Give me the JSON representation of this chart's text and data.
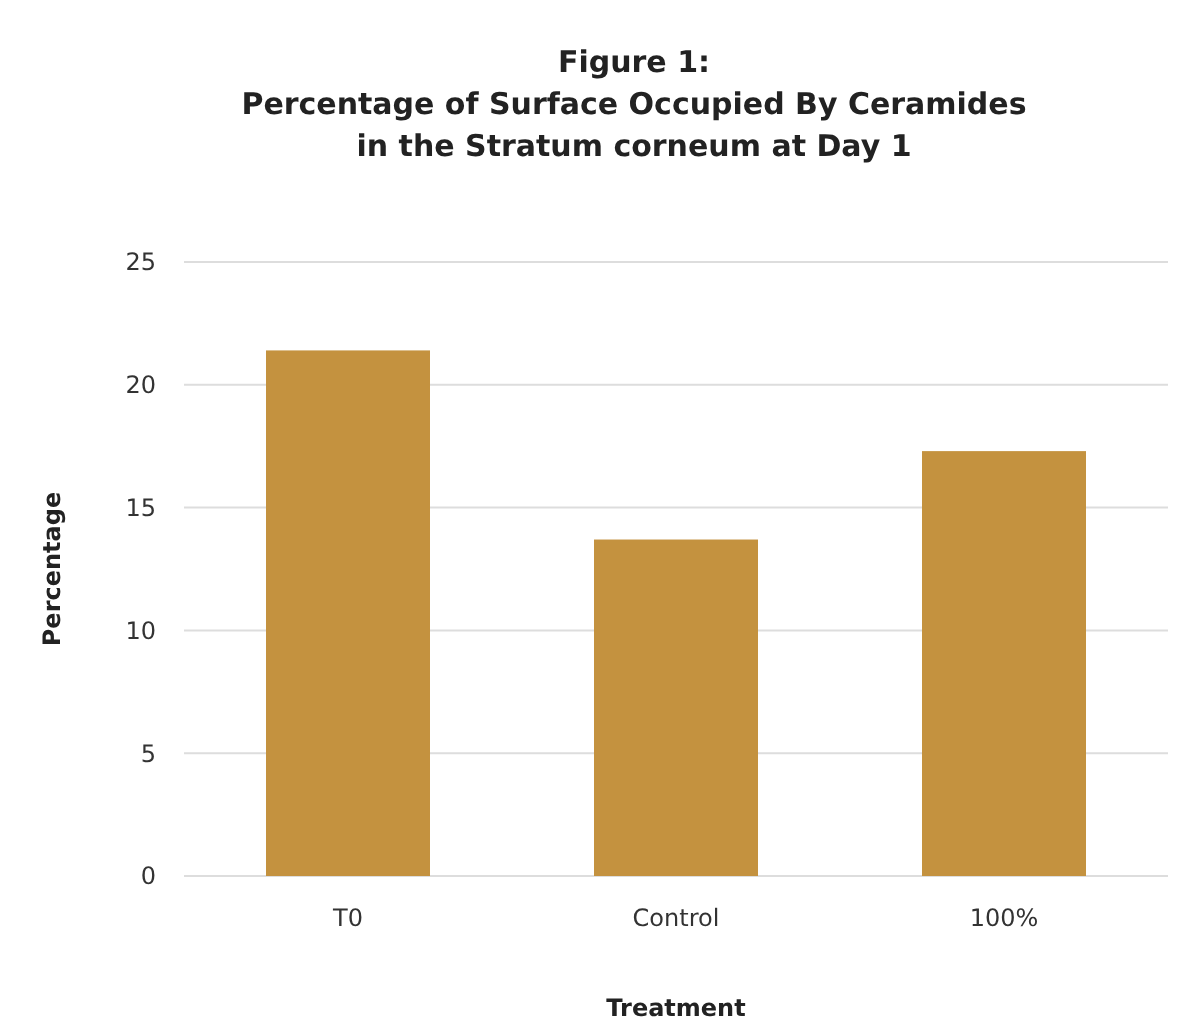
{
  "chart_data": {
    "type": "bar",
    "title": "Figure 1:\nPercentage of Surface Occupied By Ceramides\nin the Stratum corneum at Day 1",
    "xlabel": "Treatment",
    "ylabel": "Percentage",
    "categories": [
      "T0",
      "Control",
      "100%"
    ],
    "values": [
      21.4,
      13.7,
      17.3
    ],
    "color": "#c4923f",
    "ylim": [
      0,
      25
    ],
    "yticks": [
      0,
      5,
      10,
      15,
      20,
      25
    ],
    "grid": "y"
  }
}
